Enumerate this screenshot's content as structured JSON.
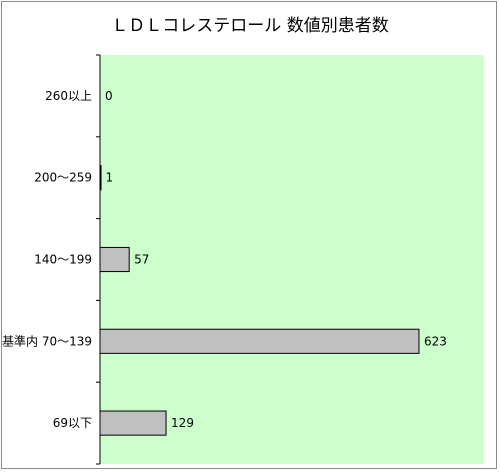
{
  "chart_data": {
    "type": "bar",
    "orientation": "horizontal",
    "title": "ＬＤＬコレステロール 数値別患者数",
    "xlabel": "",
    "ylabel": "",
    "categories": [
      "260以上",
      "200～259",
      "140～199",
      "基準内 70～139",
      "69以下"
    ],
    "values": [
      0,
      1,
      57,
      623,
      129
    ],
    "xlim": [
      0,
      750
    ],
    "grid": false,
    "legend": "none",
    "colors": {
      "plot_background": "#ccffcc",
      "bar_fill": "#c0c0c0",
      "bar_stroke": "#000000",
      "frame_border": "#8c8c8c"
    }
  }
}
